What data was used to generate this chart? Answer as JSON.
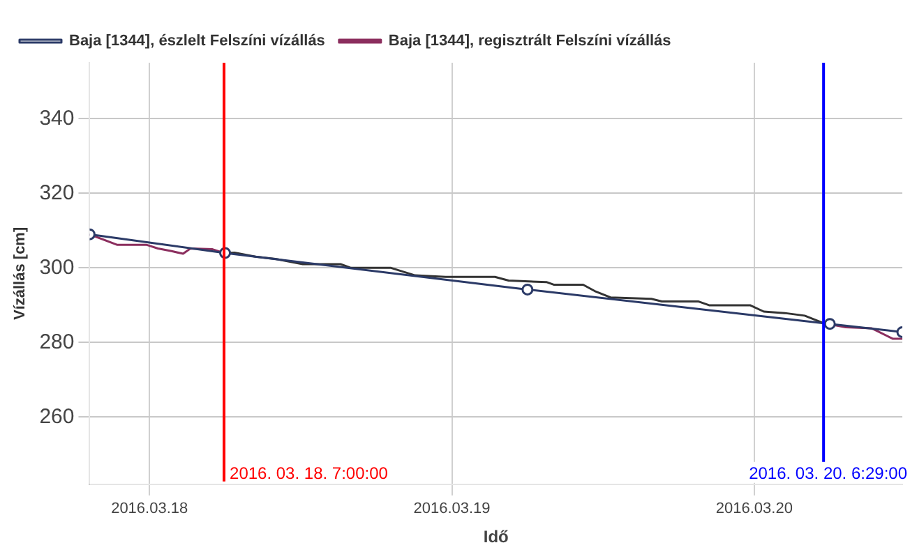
{
  "chart_data": {
    "type": "line",
    "xlabel": "Idő",
    "ylabel": "Vízállás [cm]",
    "xlim": [
      "2016-03-17T19:15",
      "2016-03-20T11:45"
    ],
    "xticks": [
      {
        "value": "2016-03-18",
        "label": "2016.03.18"
      },
      {
        "value": "2016-03-19",
        "label": "2016.03.19"
      },
      {
        "value": "2016-03-20",
        "label": "2016.03.20"
      }
    ],
    "ylim": [
      242,
      355
    ],
    "yticks": [
      260,
      280,
      300,
      320,
      340
    ],
    "grid": true,
    "legend": "top left",
    "series": [
      {
        "name": "Baja [1344], észlelt Felszíni vízállás",
        "color": "#2b3a67",
        "marker": "circle",
        "x": [
          "2016-03-17T19:15",
          "2016-03-18T06:00",
          "2016-03-19T06:00",
          "2016-03-20T06:00",
          "2016-03-20T11:45"
        ],
        "values": [
          309,
          304,
          294.2,
          285,
          282.8
        ]
      },
      {
        "name": "Baja [1344], regisztrált Felszíni vízállás",
        "color": "#8b2e5e",
        "marker": "none",
        "x": [
          "2016-03-17T19:15",
          "2016-03-17T21:25",
          "2016-03-17T23:45",
          "2016-03-18T00:40",
          "2016-03-18T01:45",
          "2016-03-18T02:40",
          "2016-03-18T03:15",
          "2016-03-18T05:00",
          "2016-03-18T05:55",
          "2016-03-19T00:00",
          "2016-03-20T05:30",
          "2016-03-20T07:15",
          "2016-03-20T09:20",
          "2016-03-20T11:00",
          "2016-03-20T11:45"
        ],
        "values": [
          309,
          306.2,
          306.2,
          305.2,
          304.5,
          303.8,
          305.2,
          305,
          304,
          null,
          285.2,
          284.1,
          283.8,
          281,
          281
        ]
      },
      {
        "color": "#333333",
        "marker": "none",
        "x": [
          "2016-03-18T05:55",
          "2016-03-18T06:45",
          "2016-03-18T08:25",
          "2016-03-18T10:00",
          "2016-03-18T12:10",
          "2016-03-18T15:10",
          "2016-03-18T16:00",
          "2016-03-18T19:10",
          "2016-03-18T21:05",
          "2016-03-18T23:30",
          "2016-03-19T03:25",
          "2016-03-19T04:30",
          "2016-03-19T07:30",
          "2016-03-19T08:05",
          "2016-03-19T10:25",
          "2016-03-19T11:20",
          "2016-03-19T12:35",
          "2016-03-19T15:50",
          "2016-03-19T16:40",
          "2016-03-19T19:35",
          "2016-03-19T20:25",
          "2016-03-19T23:40",
          "2016-03-20T00:45",
          "2016-03-20T02:25",
          "2016-03-20T04:00",
          "2016-03-20T05:30"
        ],
        "values": [
          304,
          304.1,
          303,
          302.4,
          301,
          301,
          300,
          300,
          298,
          297.6,
          297.6,
          296.6,
          296.2,
          295.5,
          295.5,
          293.8,
          292.1,
          291.7,
          291,
          291,
          290,
          290,
          288.3,
          287.9,
          287.2,
          285.2
        ]
      }
    ],
    "ref_lines": [
      {
        "axis": "x",
        "value": "2016-03-18T05:55",
        "label": "2016. 03. 18. 7:00:00",
        "color": "#ff0000"
      },
      {
        "axis": "x",
        "value": "2016-03-20T05:30",
        "label": "2016. 03. 20. 6:29:00",
        "color": "#0000ff"
      }
    ]
  }
}
